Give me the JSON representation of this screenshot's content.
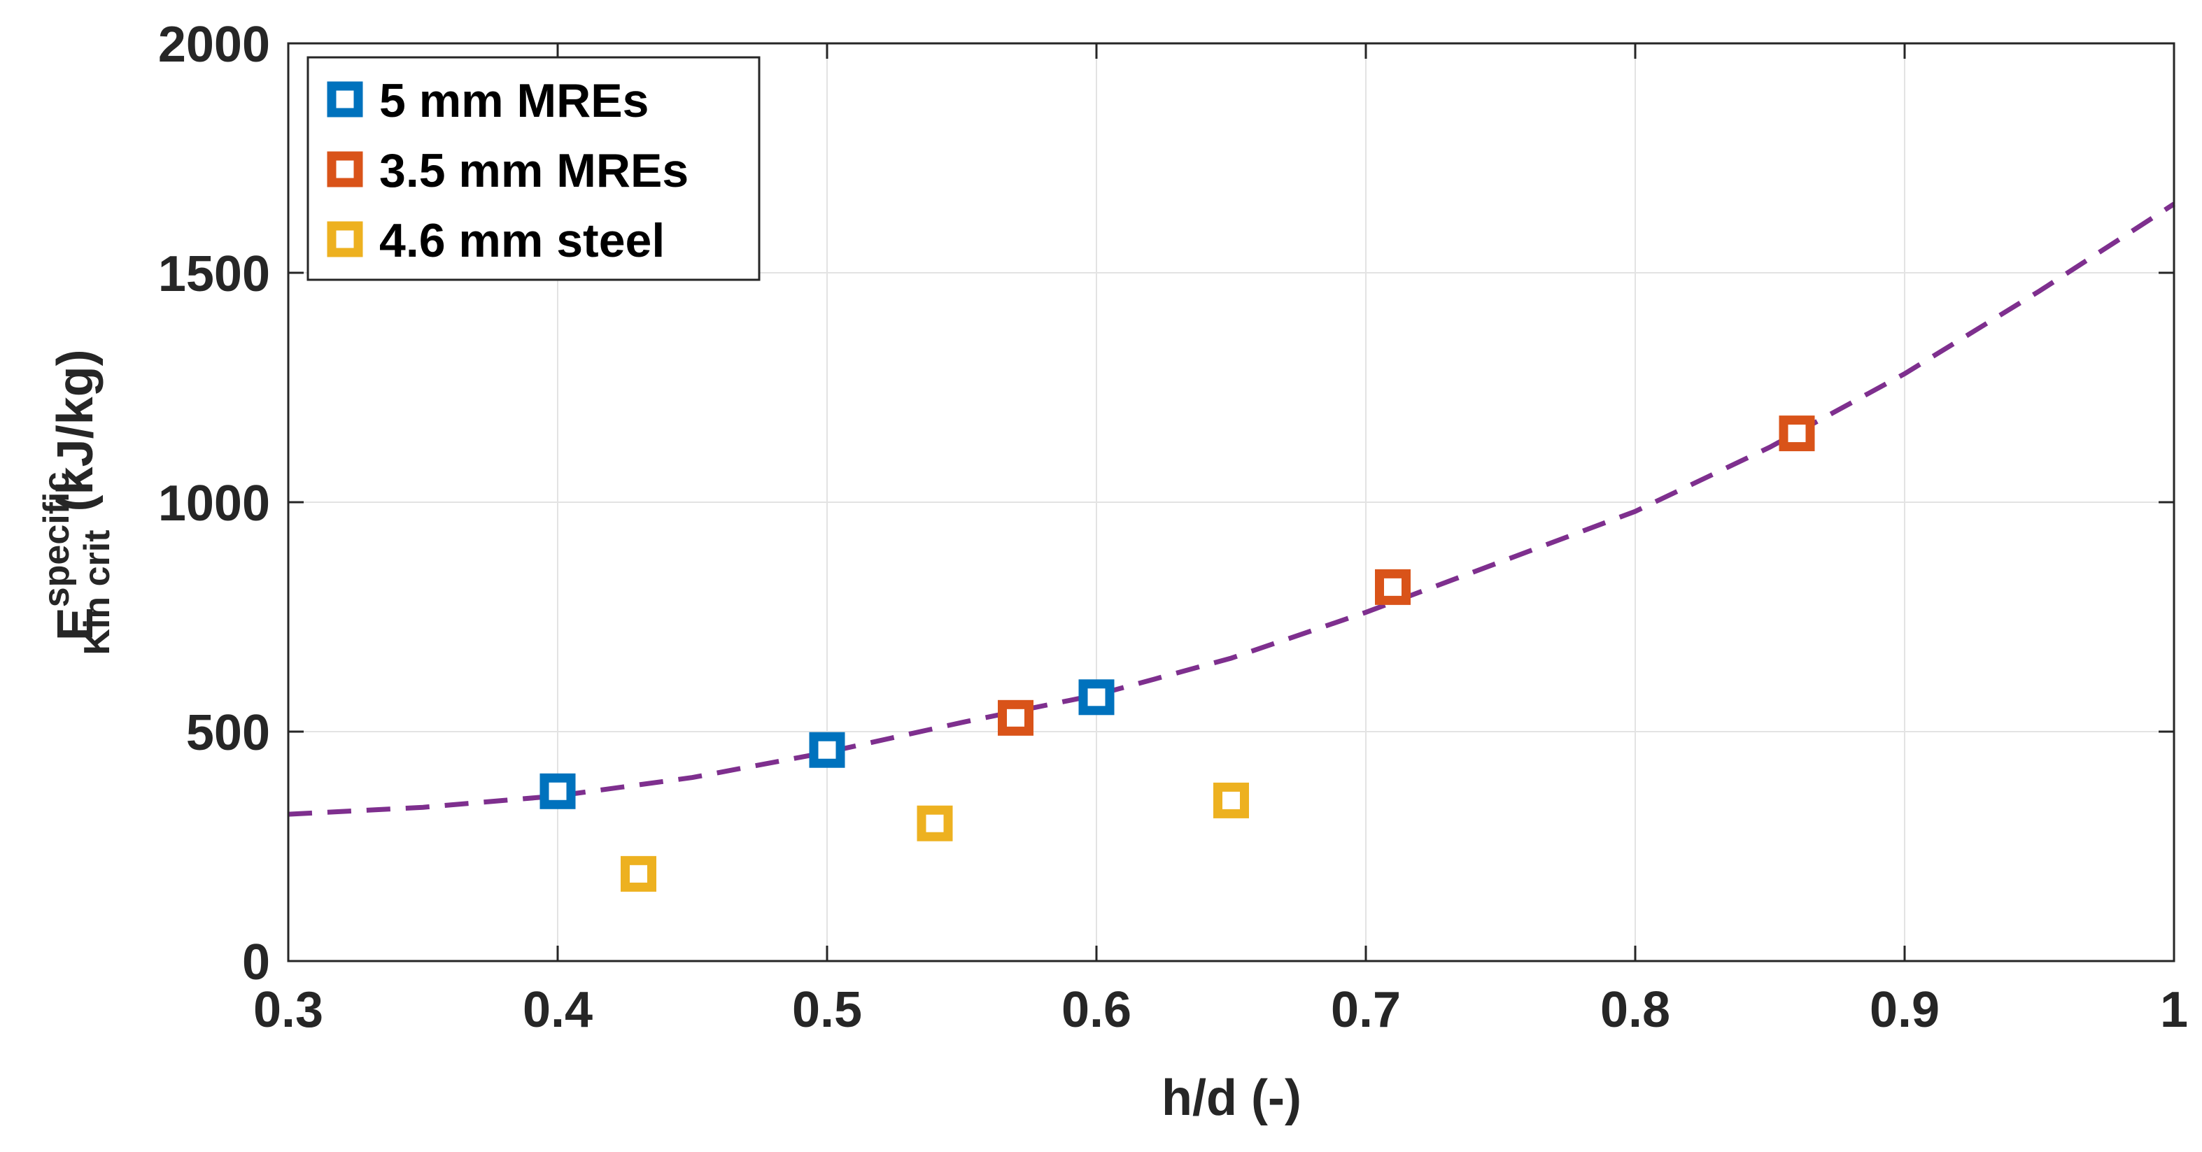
{
  "chart_data": {
    "type": "scatter",
    "xlabel": "h/d (-)",
    "ylabel": {
      "main": "E",
      "superscript": "specific",
      "subscript": "Kin crit",
      "unit": "(kJ/kg)"
    },
    "xlim": [
      0.3,
      1.0
    ],
    "ylim": [
      0,
      2000
    ],
    "x_ticks": [
      0.3,
      0.4,
      0.5,
      0.6,
      0.7,
      0.8,
      0.9,
      1.0
    ],
    "x_tick_labels": [
      "0.3",
      "0.4",
      "0.5",
      "0.6",
      "0.7",
      "0.8",
      "0.9",
      "1"
    ],
    "y_ticks": [
      0,
      500,
      1000,
      1500,
      2000
    ],
    "y_tick_labels": [
      "0",
      "500",
      "1000",
      "1500",
      "2000"
    ],
    "grid": true,
    "legend_position": "top-left",
    "series": [
      {
        "name": "5 mm MREs",
        "color": "#0072BD",
        "marker": "square",
        "x": [
          0.4,
          0.5,
          0.6
        ],
        "y": [
          370,
          460,
          575
        ]
      },
      {
        "name": "3.5 mm MREs",
        "color": "#D95319",
        "marker": "square",
        "x": [
          0.57,
          0.71,
          0.86
        ],
        "y": [
          530,
          815,
          1150
        ]
      },
      {
        "name": "4.6 mm steel",
        "color": "#EDB120",
        "marker": "square",
        "x": [
          0.43,
          0.54,
          0.65
        ],
        "y": [
          190,
          300,
          350
        ]
      }
    ],
    "fit_curve": {
      "color": "#7E2F8E",
      "style": "dashed",
      "x": [
        0.3,
        0.35,
        0.4,
        0.45,
        0.5,
        0.55,
        0.6,
        0.65,
        0.7,
        0.75,
        0.8,
        0.85,
        0.9,
        0.95,
        1.0
      ],
      "y": [
        320,
        335,
        360,
        400,
        455,
        520,
        580,
        660,
        760,
        870,
        980,
        1120,
        1280,
        1460,
        1650
      ]
    }
  }
}
